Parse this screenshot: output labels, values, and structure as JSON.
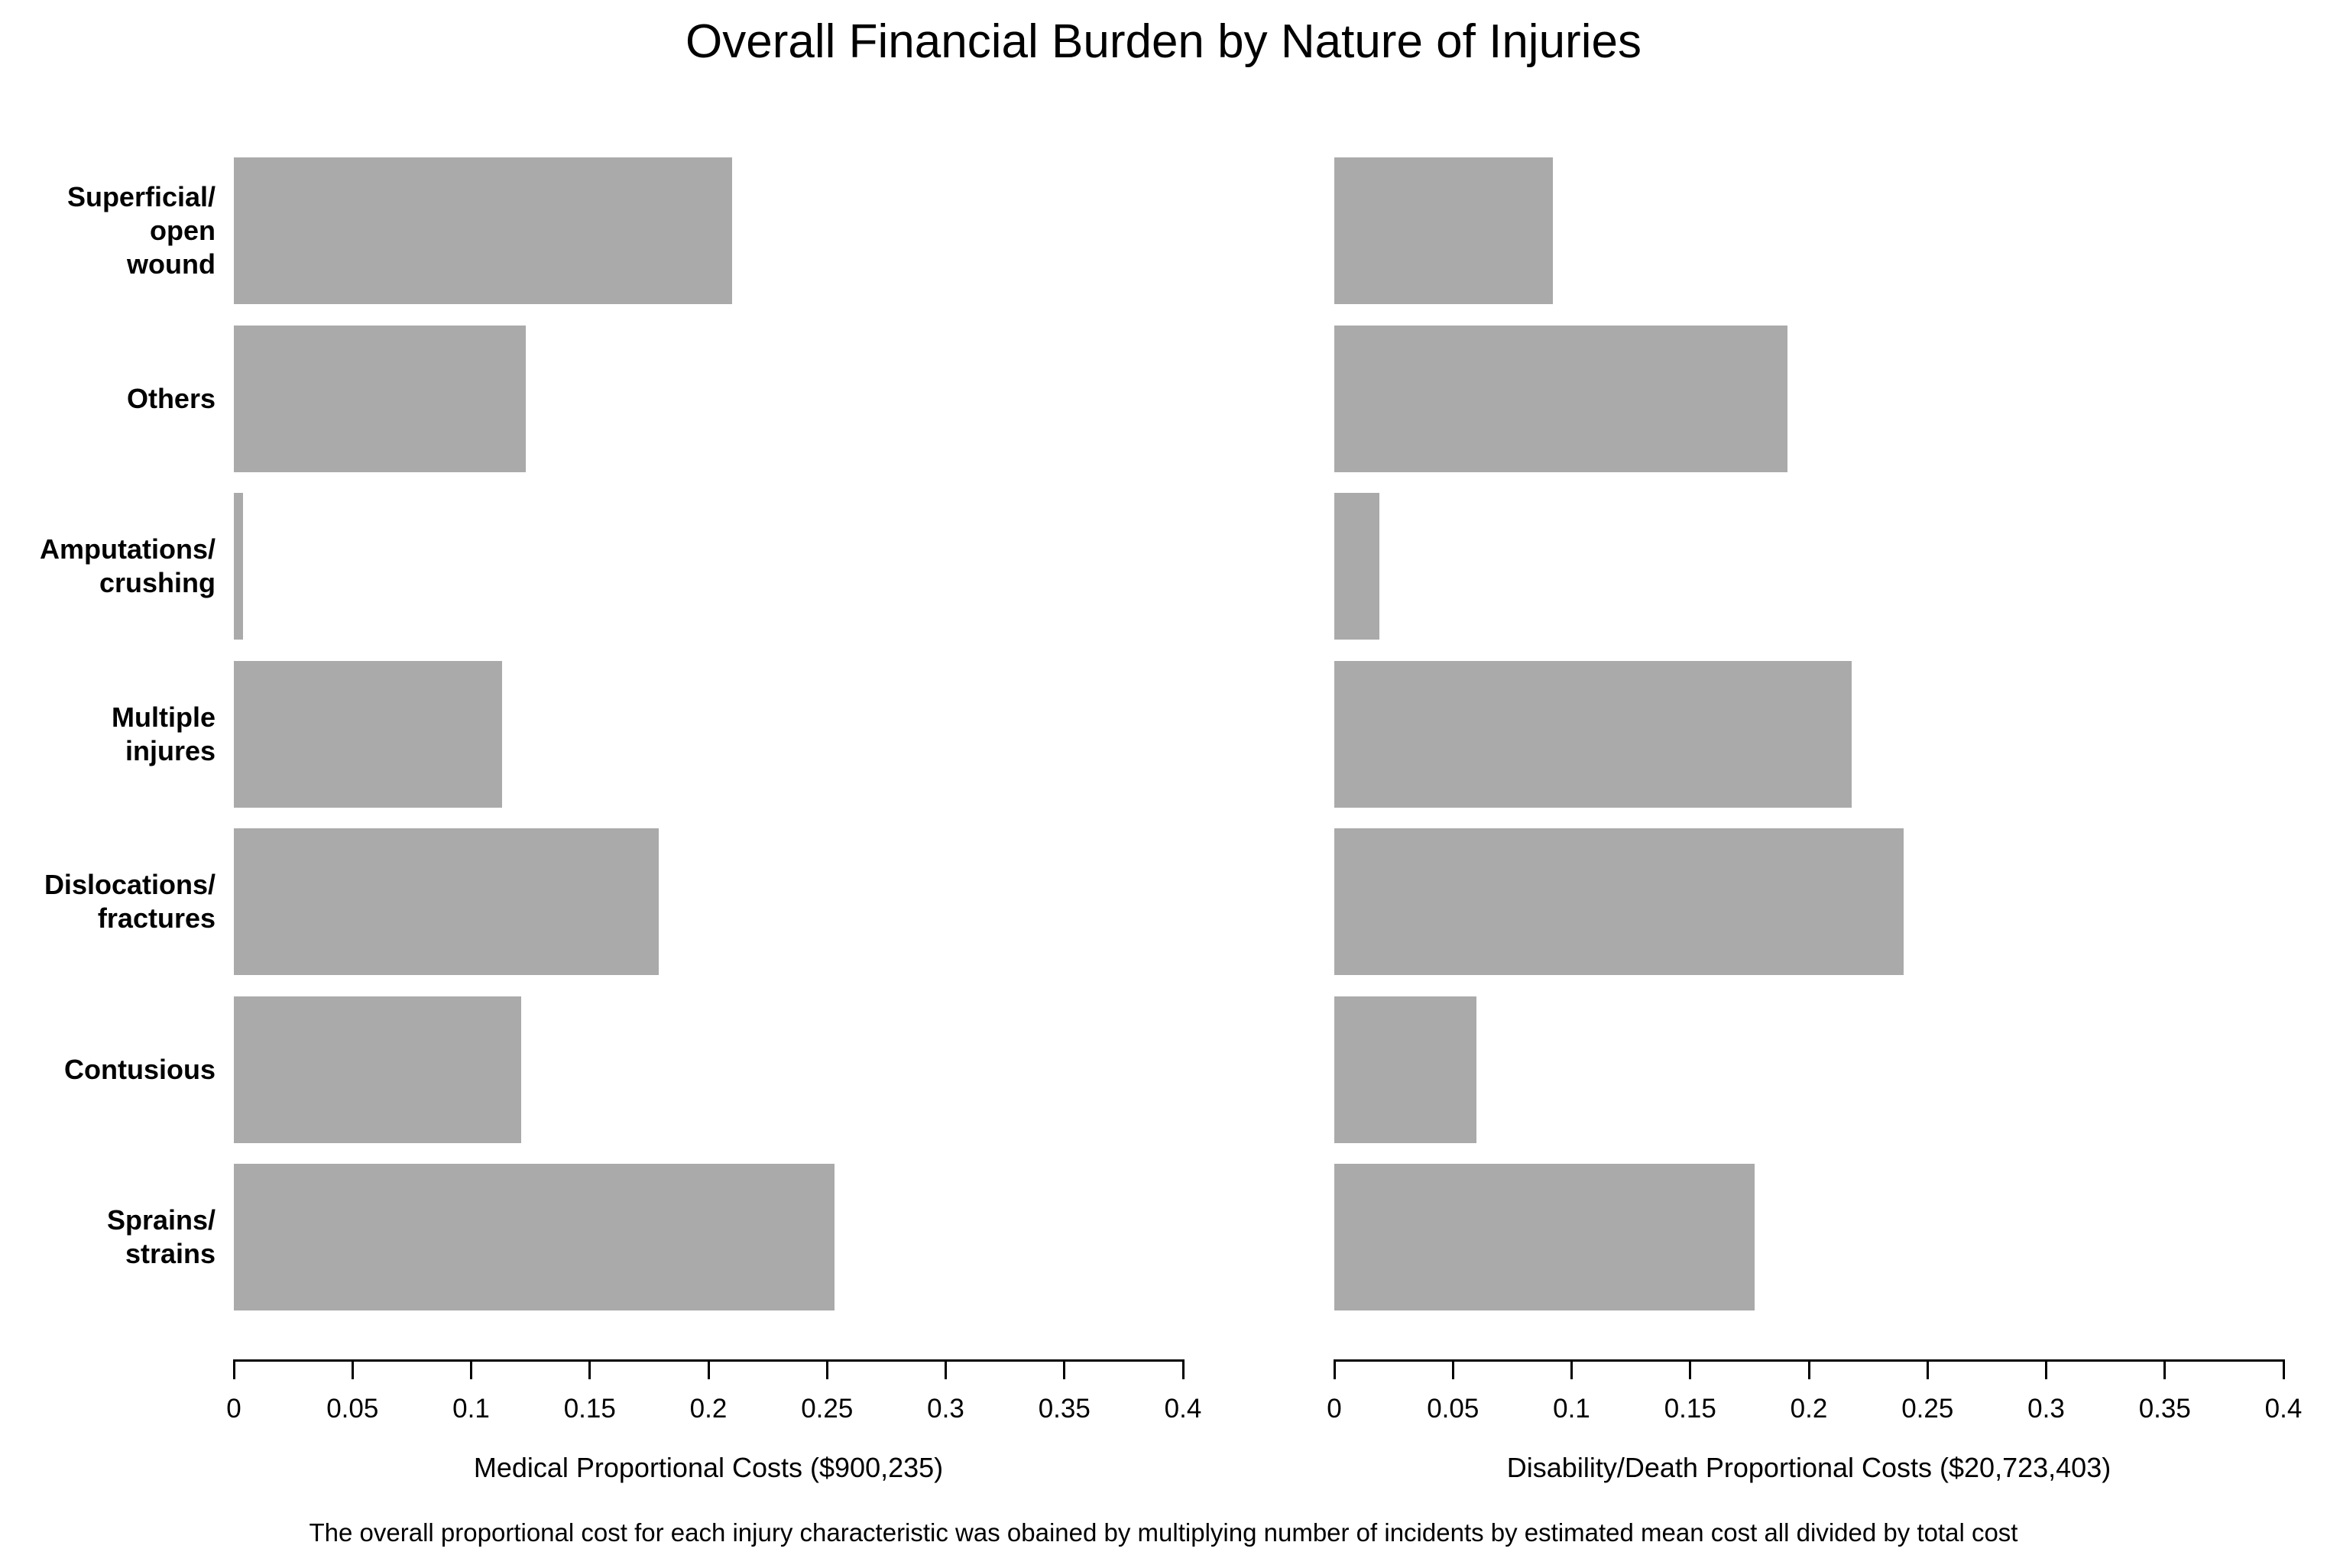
{
  "title": "Overall Financial Burden by Nature of Injuries",
  "footnote": "The overall proportional cost for each injury characteristic was obained by multiplying number of incidents by estimated mean cost all divided by total cost",
  "chart_data": {
    "type": "bar",
    "orientation": "horizontal",
    "bar_color": "#aaaaaa",
    "grid": false,
    "legend": false,
    "xlim": [
      0,
      0.4
    ],
    "xticks": [
      0,
      0.05,
      0.1,
      0.15,
      0.2,
      0.25,
      0.3,
      0.35,
      0.4
    ],
    "xtick_labels": [
      "0",
      "0.05",
      "0.1",
      "0.15",
      "0.2",
      "0.25",
      "0.3",
      "0.35",
      "0.4"
    ],
    "categories": [
      "Superficial/\nopen\nwound",
      "Others",
      "Amputations/\ncrushing",
      "Multiple\ninjures",
      "Dislocations/\nfractures",
      "Contusious",
      "Sprains/\nstrains"
    ],
    "panels": [
      {
        "name": "medical",
        "xlabel": "Medical Proportional Costs ($900,235)",
        "values": [
          0.21,
          0.123,
          0.004,
          0.113,
          0.179,
          0.121,
          0.253
        ]
      },
      {
        "name": "disability-death",
        "xlabel": "Disability/Death Proportional Costs ($20,723,403)",
        "values": [
          0.092,
          0.191,
          0.019,
          0.218,
          0.24,
          0.06,
          0.177
        ]
      }
    ]
  }
}
